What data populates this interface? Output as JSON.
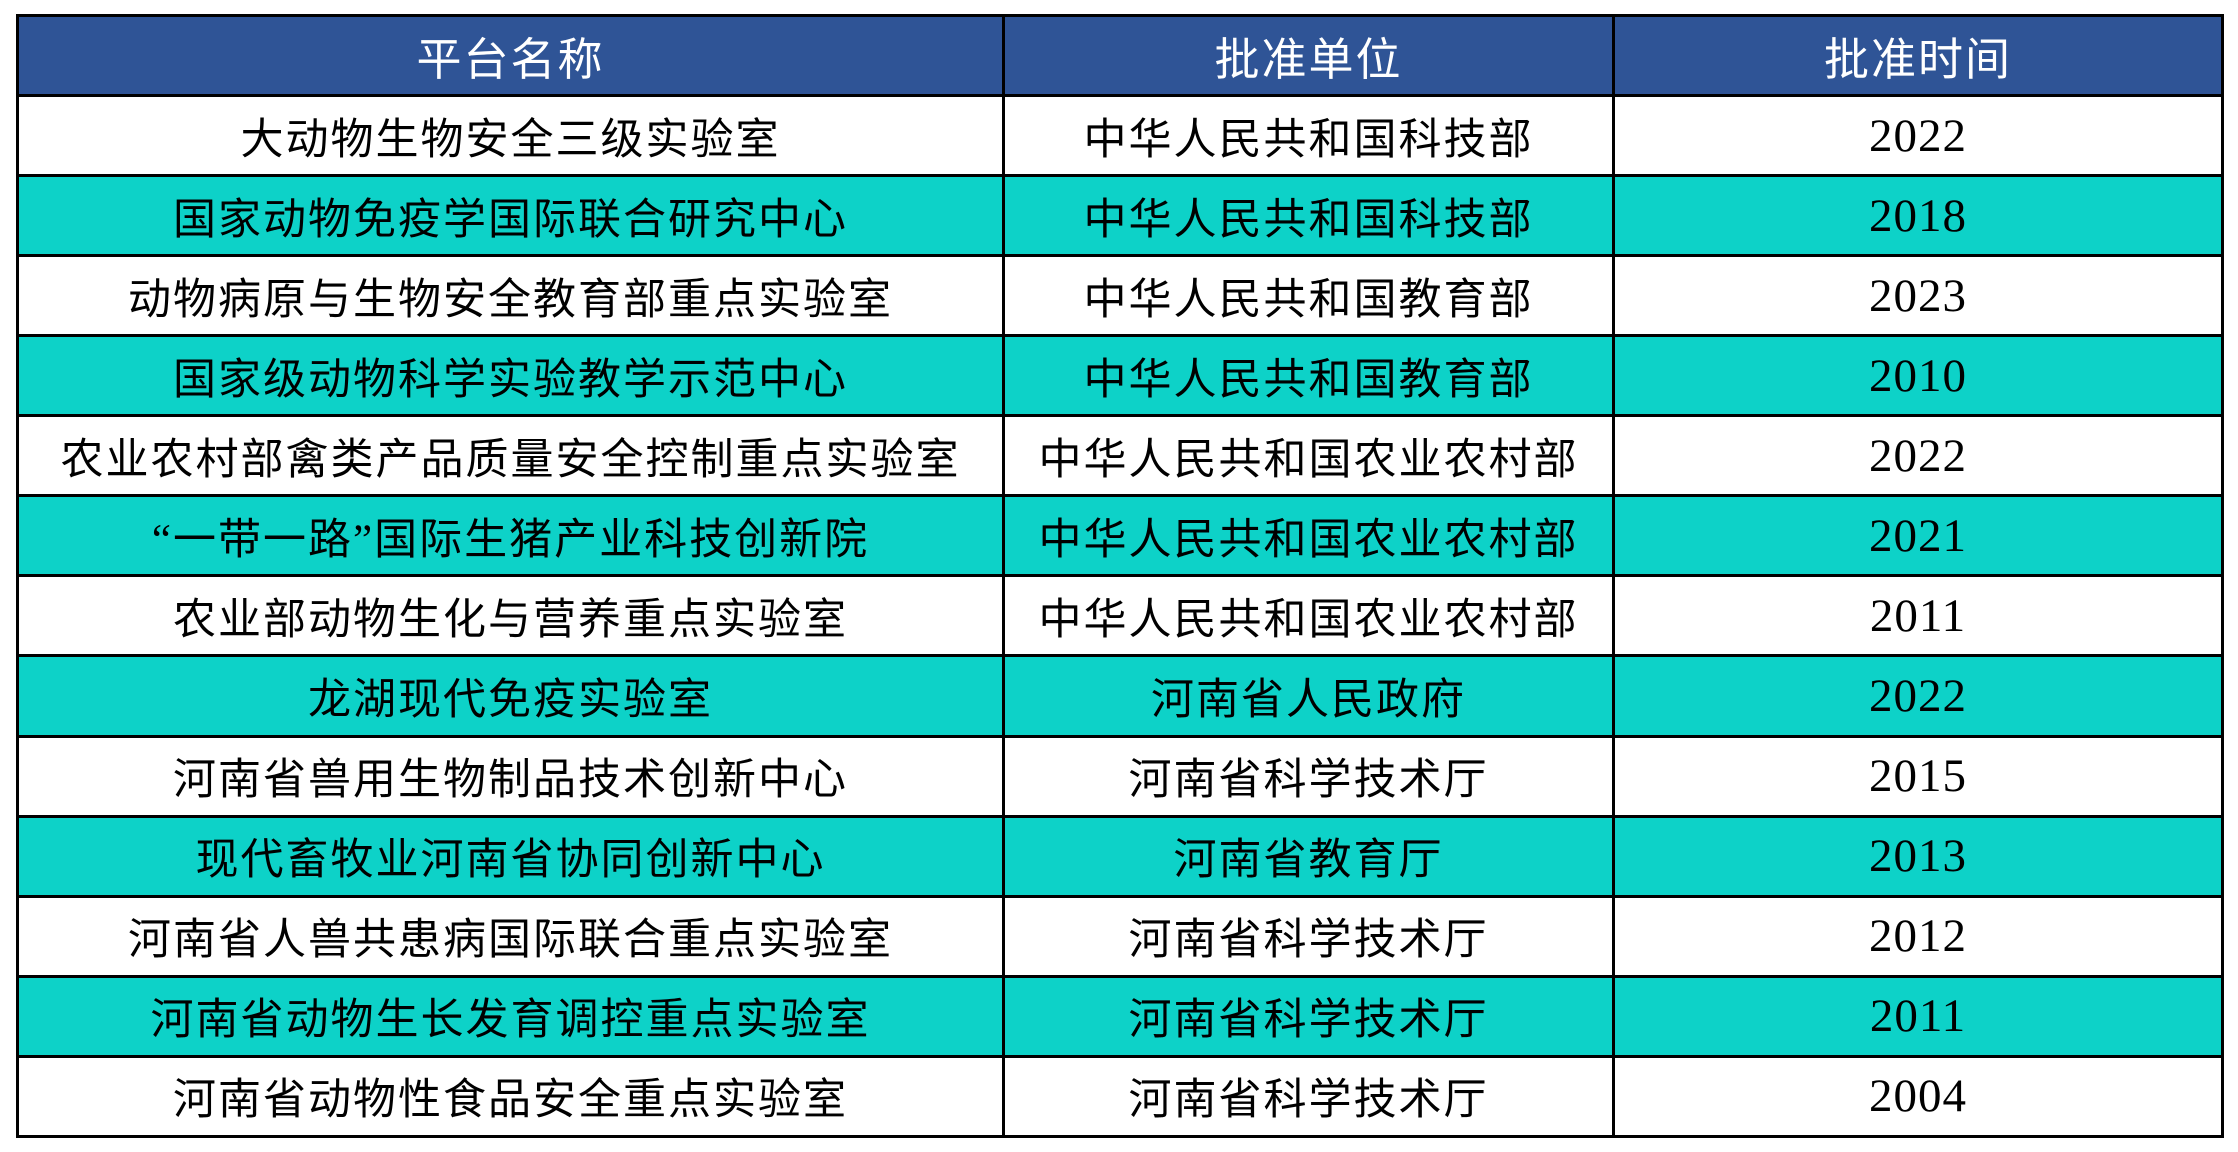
{
  "table": {
    "columns": [
      {
        "key": "name",
        "label": "平台名称"
      },
      {
        "key": "unit",
        "label": "批准单位"
      },
      {
        "key": "year",
        "label": "批准时间"
      }
    ],
    "rows": [
      {
        "name": "大动物生物安全三级实验室",
        "unit": "中华人民共和国科技部",
        "year": "2022"
      },
      {
        "name": "国家动物免疫学国际联合研究中心",
        "unit": "中华人民共和国科技部",
        "year": "2018"
      },
      {
        "name": "动物病原与生物安全教育部重点实验室",
        "unit": "中华人民共和国教育部",
        "year": "2023"
      },
      {
        "name": "国家级动物科学实验教学示范中心",
        "unit": "中华人民共和国教育部",
        "year": "2010"
      },
      {
        "name": "农业农村部禽类产品质量安全控制重点实验室",
        "unit": "中华人民共和国农业农村部",
        "year": "2022"
      },
      {
        "name": "“一带一路”国际生猪产业科技创新院",
        "unit": "中华人民共和国农业农村部",
        "year": "2021"
      },
      {
        "name": "农业部动物生化与营养重点实验室",
        "unit": "中华人民共和国农业农村部",
        "year": "2011"
      },
      {
        "name": "龙湖现代免疫实验室",
        "unit": "河南省人民政府",
        "year": "2022"
      },
      {
        "name": "河南省兽用生物制品技术创新中心",
        "unit": "河南省科学技术厅",
        "year": "2015"
      },
      {
        "name": "现代畜牧业河南省协同创新中心",
        "unit": "河南省教育厅",
        "year": "2013"
      },
      {
        "name": "河南省人兽共患病国际联合重点实验室",
        "unit": "河南省科学技术厅",
        "year": "2012"
      },
      {
        "name": "河南省动物生长发育调控重点实验室",
        "unit": "河南省科学技术厅",
        "year": "2011"
      },
      {
        "name": "河南省动物性食品安全重点实验室",
        "unit": "河南省科学技术厅",
        "year": "2004"
      }
    ],
    "colors": {
      "header_bg": "#2F5496",
      "header_text": "#FFFFFF",
      "row_bg": "#FFFFFF",
      "row_alt_bg": "#0DD2C8",
      "border": "#000000",
      "row_text": "#000000"
    }
  }
}
